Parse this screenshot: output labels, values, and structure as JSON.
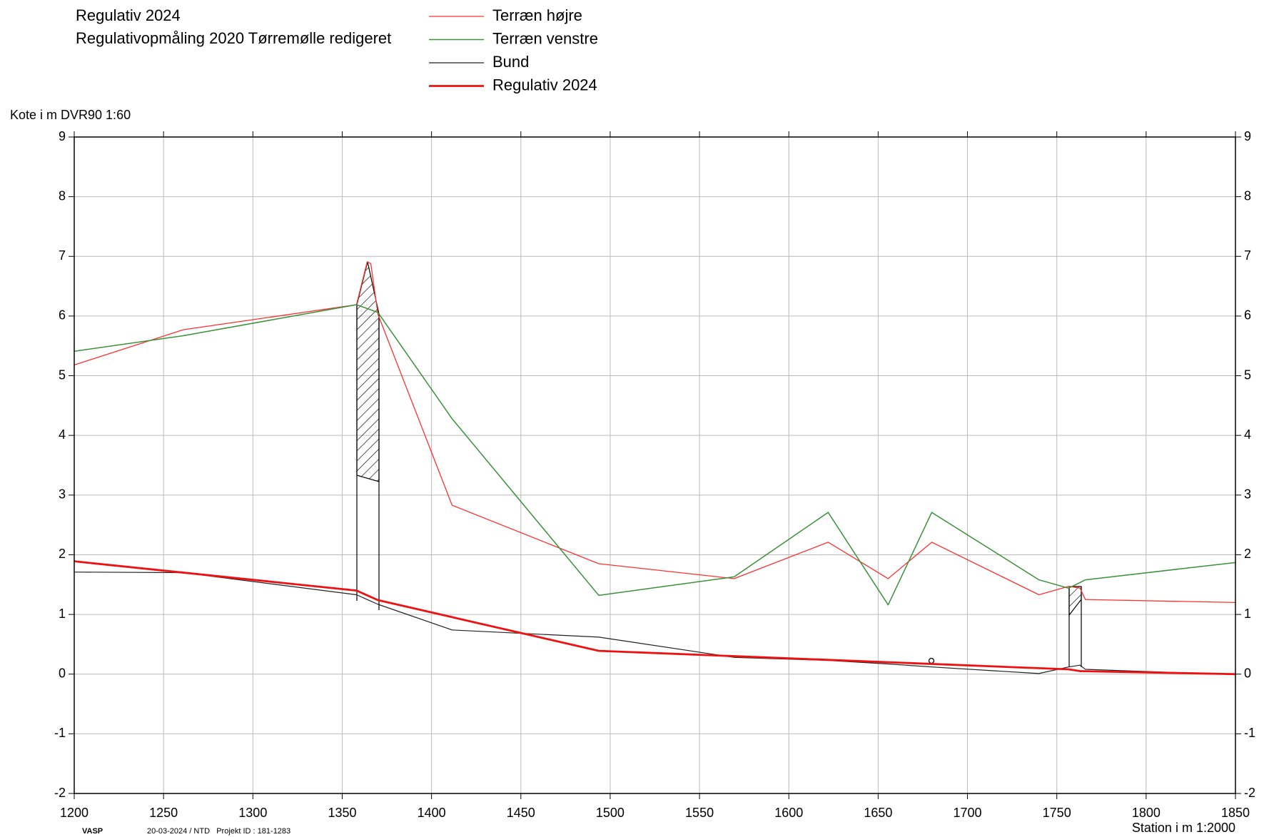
{
  "chart_data": {
    "type": "line",
    "title": "Regulativ 2024",
    "subtitle": "Regulativopmåling 2020 Tørremølle redigeret",
    "ylabel": "Kote i m DVR90 1:60",
    "xlabel": "Station i m  1:2000",
    "software": "VASP",
    "note": "20-03-2024 / NTD   Projekt ID : 181-1283",
    "xlim": [
      1200,
      1850
    ],
    "xticks": [
      1200,
      1250,
      1300,
      1350,
      1400,
      1450,
      1500,
      1550,
      1600,
      1650,
      1700,
      1750,
      1800,
      1850
    ],
    "ylim": [
      -2,
      9
    ],
    "yticks": [
      -2,
      -1,
      0,
      1,
      2,
      3,
      4,
      5,
      6,
      7,
      8,
      9
    ],
    "grid": true,
    "series": [
      {
        "name": "Terræn højre",
        "color": "#ff3030",
        "line_width": 1.3,
        "x": [
          1200,
          1261,
          1358,
          1364,
          1366,
          1370,
          1411.5,
          1493.6,
          1569.4,
          1622,
          1655.6,
          1680,
          1740,
          1756.6,
          1763,
          1766,
          1850
        ],
        "values": [
          5.18,
          5.77,
          6.19,
          6.91,
          6.88,
          6.03,
          2.83,
          1.85,
          1.6,
          2.21,
          1.6,
          2.21,
          1.33,
          1.47,
          1.44,
          1.25,
          1.2
        ]
      },
      {
        "name": "Terræn venstre",
        "color": "#3a913a",
        "line_width": 1.5,
        "x": [
          1200,
          1261,
          1358,
          1370,
          1411.5,
          1493.6,
          1569.4,
          1622,
          1655.6,
          1680,
          1740,
          1756.6,
          1766,
          1850
        ],
        "values": [
          5.41,
          5.67,
          6.19,
          6.06,
          4.28,
          1.32,
          1.63,
          2.71,
          1.16,
          2.71,
          1.58,
          1.44,
          1.58,
          1.87
        ]
      },
      {
        "name": "Bund",
        "color": "#222222",
        "line_width": 1.2,
        "x": [
          1200,
          1261,
          1358,
          1370,
          1411.5,
          1493.6,
          1569.4,
          1622,
          1655.6,
          1680,
          1740,
          1756.6,
          1763,
          1766,
          1850
        ],
        "values": [
          1.71,
          1.7,
          1.33,
          1.17,
          0.74,
          0.62,
          0.28,
          0.23,
          0.17,
          0.12,
          0.01,
          0.12,
          0.15,
          0.08,
          -0.01
        ]
      },
      {
        "name": "Regulativ 2024",
        "color": "#ee1111",
        "line_width": 2.8,
        "x": [
          1200,
          1358,
          1370,
          1493.6,
          1756.6,
          1763,
          1850
        ],
        "values": [
          1.89,
          1.4,
          1.24,
          0.39,
          0.08,
          0.05,
          0.0
        ]
      }
    ]
  }
}
